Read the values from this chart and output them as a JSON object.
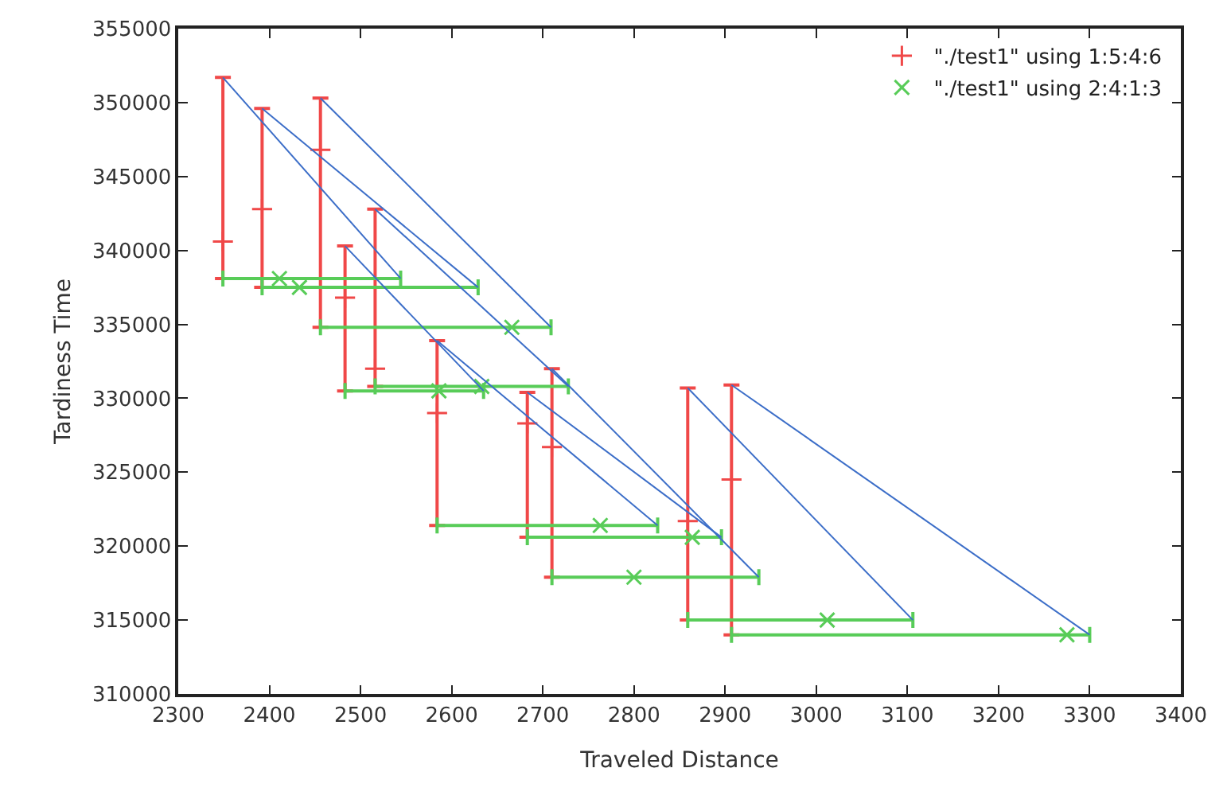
{
  "chart_data": {
    "type": "scatter",
    "xlabel": "Traveled Distance",
    "ylabel": "Tardiness Time",
    "xlim": [
      2300,
      3400
    ],
    "xticks": [
      2300,
      2400,
      2500,
      2600,
      2700,
      2800,
      2900,
      3000,
      3100,
      3200,
      3300,
      3400
    ],
    "ylim": [
      310000,
      355000
    ],
    "yticks": [
      310000,
      315000,
      320000,
      325000,
      330000,
      335000,
      340000,
      345000,
      350000,
      355000
    ],
    "legend": "top right",
    "series": [
      {
        "name": "\"./test1\" using 1:5:4:6",
        "color": "#f04848",
        "marker": "cross",
        "x": [
          2349,
          2392,
          2456,
          2483,
          2516,
          2584,
          2683,
          2710,
          2859,
          2907
        ],
        "values": [
          340600,
          342800,
          346800,
          336800,
          332000,
          329000,
          328300,
          326700,
          321700,
          324500
        ],
        "errors": [
          [
            338100,
            351700
          ],
          [
            337500,
            349600
          ],
          [
            334800,
            350300
          ],
          [
            330500,
            340300
          ],
          [
            330800,
            342800
          ],
          [
            321400,
            333900
          ],
          [
            320600,
            330400
          ],
          [
            317900,
            332000
          ],
          [
            315000,
            330700
          ],
          [
            314000,
            330900
          ]
        ]
      },
      {
        "name": "\"./test1\" using 2:4:1:3",
        "color": "#58cc58",
        "marker": "cross",
        "x": [
          2411,
          2433,
          2666,
          2586,
          2633,
          2763,
          2864,
          2800,
          3012,
          3275
        ],
        "values": [
          338100,
          337500,
          334800,
          330500,
          330800,
          321400,
          320600,
          317900,
          315000,
          314000
        ],
        "xerrors": [
          [
            2349,
            2544
          ],
          [
            2392,
            2629
          ],
          [
            2456,
            2709
          ],
          [
            2483,
            2635
          ],
          [
            2516,
            2728
          ],
          [
            2584,
            2826
          ],
          [
            2683,
            2896
          ],
          [
            2710,
            2937
          ],
          [
            2859,
            3106
          ],
          [
            2907,
            3300
          ]
        ]
      },
      {
        "type": "line",
        "color": "#3c6ec8",
        "marker": "none",
        "x": [
          2349,
          2544
        ],
        "values": [
          351700,
          338100
        ]
      },
      {
        "type": "line",
        "color": "#3c6ec8",
        "marker": "none",
        "x": [
          2392,
          2629
        ],
        "values": [
          349600,
          337500
        ]
      },
      {
        "type": "line",
        "color": "#3c6ec8",
        "marker": "none",
        "x": [
          2456,
          2709
        ],
        "values": [
          350300,
          334800
        ]
      },
      {
        "type": "line",
        "color": "#3c6ec8",
        "marker": "none",
        "x": [
          2483,
          2635
        ],
        "values": [
          340300,
          330500
        ]
      },
      {
        "type": "line",
        "color": "#3c6ec8",
        "marker": "none",
        "x": [
          2516,
          2728
        ],
        "values": [
          342800,
          330800
        ]
      },
      {
        "type": "line",
        "color": "#3c6ec8",
        "marker": "none",
        "x": [
          2584,
          2826
        ],
        "values": [
          333900,
          321400
        ]
      },
      {
        "type": "line",
        "color": "#3c6ec8",
        "marker": "none",
        "x": [
          2683,
          2896
        ],
        "values": [
          330400,
          320600
        ]
      },
      {
        "type": "line",
        "color": "#3c6ec8",
        "marker": "none",
        "x": [
          2710,
          2937
        ],
        "values": [
          332000,
          317900
        ]
      },
      {
        "type": "line",
        "color": "#3c6ec8",
        "marker": "none",
        "x": [
          2859,
          3106
        ],
        "values": [
          330700,
          315000
        ]
      },
      {
        "type": "line",
        "color": "#3c6ec8",
        "marker": "none",
        "x": [
          2907,
          3300
        ],
        "values": [
          330900,
          314000
        ]
      }
    ]
  }
}
